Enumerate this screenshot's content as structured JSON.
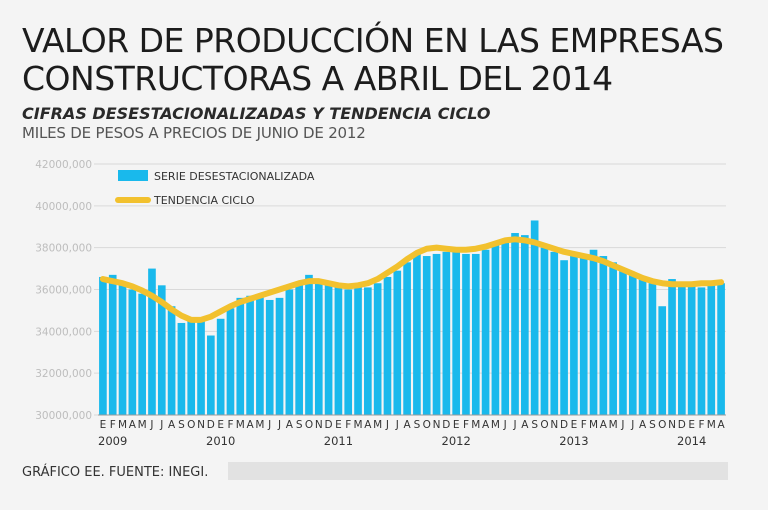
{
  "header": {
    "title": "VALOR DE PRODUCCIÓN EN LAS EMPRESAS CONSTRUCTORAS A ABRIL DEL 2014",
    "subtitle": "CIFRAS DESESTACIONALIZADAS Y TENDENCIA CICLO",
    "units": "MILES DE PESOS A PRECIOS DE JUNIO DE 2012"
  },
  "footer": {
    "source": "GRÁFICO EE. FUENTE: INEGI."
  },
  "colors": {
    "bars": "#19b9ec",
    "trend": "#f2c12e",
    "grid": "#d9d9d9"
  },
  "chart_data": {
    "type": "bar",
    "ylim": [
      30000000,
      42000000
    ],
    "yticks": [
      "30000,000",
      "32000,000",
      "34000,000",
      "36000,000",
      "38000,000",
      "40000,000",
      "42000,000"
    ],
    "month_labels": [
      "E",
      "F",
      "M",
      "A",
      "M",
      "J",
      "J",
      "A",
      "S",
      "O",
      "N",
      "D",
      "E",
      "F",
      "M",
      "A",
      "M",
      "J",
      "J",
      "A",
      "S",
      "O",
      "N",
      "D",
      "E",
      "F",
      "M",
      "A",
      "M",
      "J",
      "J",
      "A",
      "S",
      "O",
      "N",
      "D",
      "E",
      "F",
      "M",
      "A",
      "M",
      "J",
      "J",
      "A",
      "S",
      "O",
      "N",
      "D",
      "E",
      "F",
      "M",
      "A",
      "M",
      "J",
      "J",
      "A",
      "S",
      "O",
      "N",
      "D",
      "E",
      "F",
      "M",
      "A"
    ],
    "year_labels": [
      "2009",
      "2010",
      "2011",
      "2012",
      "2013",
      "2014"
    ],
    "series": [
      {
        "name": "SERIE DESESTACIONALIZADA",
        "type": "bar",
        "values": [
          36600000,
          36700000,
          36200000,
          36000000,
          35800000,
          37000000,
          36200000,
          35200000,
          34400000,
          34600000,
          34500000,
          33800000,
          34600000,
          35100000,
          35600000,
          35700000,
          35700000,
          35500000,
          35600000,
          36000000,
          36300000,
          36700000,
          36400000,
          36200000,
          36200000,
          36000000,
          36100000,
          36100000,
          36300000,
          36600000,
          36900000,
          37300000,
          37800000,
          37600000,
          37700000,
          37800000,
          37800000,
          37700000,
          37700000,
          37900000,
          38200000,
          38400000,
          38700000,
          38600000,
          39300000,
          38000000,
          37800000,
          37400000,
          37600000,
          37700000,
          37900000,
          37600000,
          37300000,
          37000000,
          36700000,
          36500000,
          36300000,
          35200000,
          36500000,
          36200000,
          36200000,
          36100000,
          36200000,
          36300000
        ]
      },
      {
        "name": "TENDENCIA CICLO",
        "type": "line",
        "values": [
          36500000,
          36400000,
          36300000,
          36150000,
          35950000,
          35700000,
          35400000,
          35050000,
          34750000,
          34550000,
          34550000,
          34700000,
          34950000,
          35200000,
          35400000,
          35550000,
          35700000,
          35850000,
          36000000,
          36150000,
          36300000,
          36400000,
          36400000,
          36300000,
          36200000,
          36150000,
          36200000,
          36300000,
          36500000,
          36800000,
          37100000,
          37450000,
          37750000,
          37950000,
          38000000,
          37950000,
          37900000,
          37900000,
          37950000,
          38050000,
          38200000,
          38350000,
          38400000,
          38350000,
          38250000,
          38100000,
          37950000,
          37800000,
          37700000,
          37600000,
          37500000,
          37350000,
          37150000,
          36950000,
          36750000,
          36550000,
          36400000,
          36300000,
          36250000,
          36250000,
          36250000,
          36300000,
          36300000,
          36350000
        ]
      }
    ]
  }
}
